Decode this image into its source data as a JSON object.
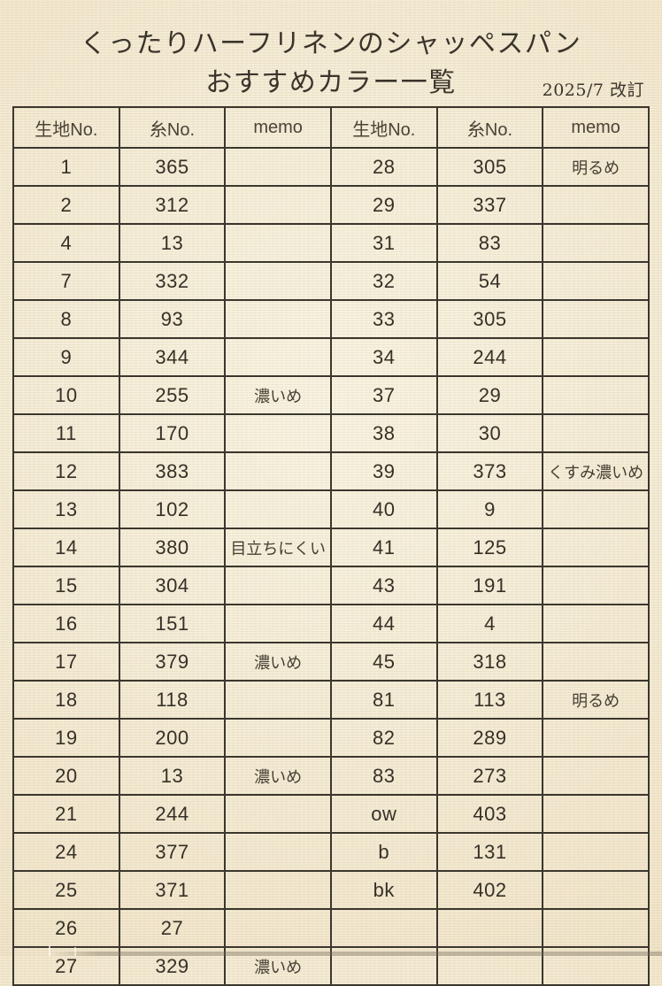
{
  "doc": {
    "title_line1": "くったりハーフリネンのシャッペスパン",
    "title_line2": "おすすめカラー一覧",
    "revision": "2025/7 改訂"
  },
  "table": {
    "headers": [
      "生地No.",
      "糸No.",
      "memo",
      "生地No.",
      "糸No.",
      "memo"
    ],
    "left_rows": [
      [
        "1",
        "365",
        ""
      ],
      [
        "2",
        "312",
        ""
      ],
      [
        "4",
        "13",
        ""
      ],
      [
        "7",
        "332",
        ""
      ],
      [
        "8",
        "93",
        ""
      ],
      [
        "9",
        "344",
        ""
      ],
      [
        "10",
        "255",
        "濃いめ"
      ],
      [
        "11",
        "170",
        ""
      ],
      [
        "12",
        "383",
        ""
      ],
      [
        "13",
        "102",
        ""
      ],
      [
        "14",
        "380",
        "目立ちにくい"
      ],
      [
        "15",
        "304",
        ""
      ],
      [
        "16",
        "151",
        ""
      ],
      [
        "17",
        "379",
        "濃いめ"
      ],
      [
        "18",
        "118",
        ""
      ],
      [
        "19",
        "200",
        ""
      ],
      [
        "20",
        "13",
        "濃いめ"
      ],
      [
        "21",
        "244",
        ""
      ],
      [
        "24",
        "377",
        ""
      ],
      [
        "25",
        "371",
        ""
      ],
      [
        "26",
        "27",
        ""
      ],
      [
        "27",
        "329",
        "濃いめ"
      ]
    ],
    "right_rows": [
      [
        "28",
        "305",
        "明るめ"
      ],
      [
        "29",
        "337",
        ""
      ],
      [
        "31",
        "83",
        ""
      ],
      [
        "32",
        "54",
        ""
      ],
      [
        "33",
        "305",
        ""
      ],
      [
        "34",
        "244",
        ""
      ],
      [
        "37",
        "29",
        ""
      ],
      [
        "38",
        "30",
        ""
      ],
      [
        "39",
        "373",
        "くすみ濃いめ"
      ],
      [
        "40",
        "9",
        ""
      ],
      [
        "41",
        "125",
        ""
      ],
      [
        "43",
        "191",
        ""
      ],
      [
        "44",
        "4",
        ""
      ],
      [
        "45",
        "318",
        ""
      ],
      [
        "81",
        "113",
        "明るめ"
      ],
      [
        "82",
        "289",
        ""
      ],
      [
        "83",
        "273",
        ""
      ],
      [
        "ow",
        "403",
        ""
      ],
      [
        "b",
        "131",
        ""
      ],
      [
        "bk",
        "402",
        ""
      ],
      [
        "",
        "",
        ""
      ],
      [
        "",
        "",
        ""
      ]
    ]
  },
  "colors": {
    "paper": "#f2e8ce",
    "line": "#3b372e",
    "ink": "#3a342b"
  }
}
